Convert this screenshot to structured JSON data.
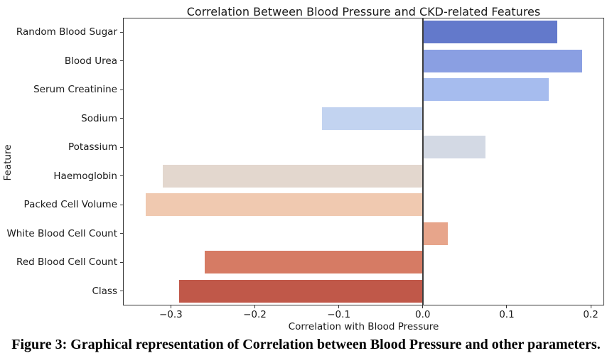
{
  "figure": {
    "caption": "Figure 3: Graphical representation of Correlation between Blood Pressure and other parameters."
  },
  "chart_data": {
    "type": "bar",
    "orientation": "horizontal",
    "title": "Correlation Between Blood Pressure and CKD-related Features",
    "xlabel": "Correlation with Blood Pressure",
    "ylabel": "Feature",
    "categories": [
      "Random Blood Sugar",
      "Blood Urea",
      "Serum Creatinine",
      "Sodium",
      "Potassium",
      "Haemoglobin",
      "Packed Cell Volume",
      "White Blood Cell Count",
      "Red Blood Cell Count",
      "Class"
    ],
    "values": [
      0.16,
      0.19,
      0.15,
      -0.12,
      0.075,
      -0.31,
      -0.33,
      0.03,
      -0.26,
      -0.29
    ],
    "bar_colors": [
      "#6379cb",
      "#8a9fe2",
      "#a6bcee",
      "#c2d3f0",
      "#d3d9e4",
      "#e3d7ce",
      "#f0c9b0",
      "#e7a58b",
      "#d67b64",
      "#c05849"
    ],
    "xlim": [
      -0.357,
      0.216
    ],
    "xticks": {
      "values": [
        -0.3,
        -0.2,
        -0.1,
        0.0,
        0.1,
        0.2
      ],
      "labels": [
        "−0.3",
        "−0.2",
        "−0.1",
        "0.0",
        "0.1",
        "0.2"
      ]
    },
    "zero_line": true,
    "grid": false,
    "legend": null,
    "bar_height_fraction": 0.8
  },
  "colors": {
    "background": "#ffffff",
    "text": "#1a1a1a",
    "spine": "#363636",
    "zero_line": "#3d3d3d"
  }
}
